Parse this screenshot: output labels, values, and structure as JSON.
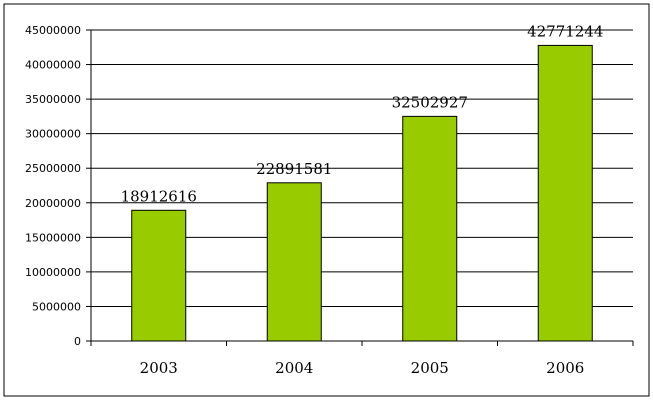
{
  "chart_data": {
    "type": "bar",
    "categories": [
      "2003",
      "2004",
      "2005",
      "2006"
    ],
    "values": [
      18912616,
      22891581,
      32502927,
      42771244
    ],
    "data_labels": [
      "18912616",
      "22891581",
      "32502927",
      "42771244"
    ],
    "y_ticks": [
      0,
      5000000,
      10000000,
      15000000,
      20000000,
      25000000,
      30000000,
      35000000,
      40000000,
      45000000
    ],
    "ylim": [
      0,
      45000000
    ],
    "title": "",
    "xlabel": "",
    "ylabel": "",
    "grid": true,
    "legend": "none",
    "bar_color": "#99cc00",
    "bar_edge_color": "#000000"
  }
}
